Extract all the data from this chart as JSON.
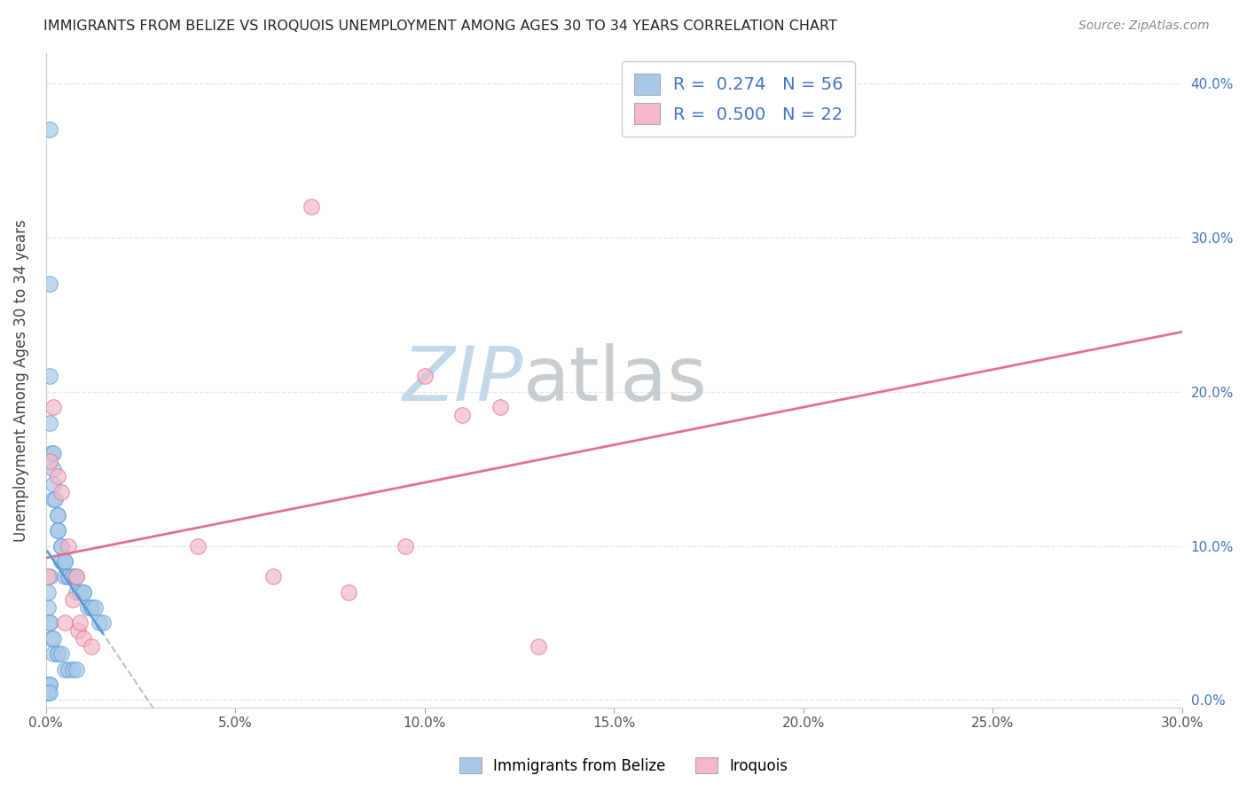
{
  "title": "IMMIGRANTS FROM BELIZE VS IROQUOIS UNEMPLOYMENT AMONG AGES 30 TO 34 YEARS CORRELATION CHART",
  "source": "Source: ZipAtlas.com",
  "ylabel": "Unemployment Among Ages 30 to 34 years",
  "xlabel_blue": "Immigrants from Belize",
  "xlabel_pink": "Iroquois",
  "xlim": [
    0,
    0.3
  ],
  "ylim": [
    -0.005,
    0.42
  ],
  "xticks": [
    0.0,
    0.05,
    0.1,
    0.15,
    0.2,
    0.25,
    0.3
  ],
  "yticks": [
    0.0,
    0.1,
    0.2,
    0.3,
    0.4
  ],
  "blue_R": 0.274,
  "blue_N": 56,
  "pink_R": 0.5,
  "pink_N": 22,
  "blue_color": "#a8c8e8",
  "blue_edge_color": "#5b9bd5",
  "pink_color": "#f4b8c8",
  "pink_edge_color": "#e07090",
  "blue_trend_color": "#5b9bd5",
  "pink_trend_color": "#e07090",
  "watermark_zip_color": "#c8d8e8",
  "watermark_atlas_color": "#c8d0d8",
  "background_color": "#ffffff",
  "grid_color": "#dde8ee",
  "blue_x": [
    0.001,
    0.001,
    0.001,
    0.001,
    0.0015,
    0.002,
    0.002,
    0.002,
    0.002,
    0.0025,
    0.003,
    0.003,
    0.003,
    0.003,
    0.004,
    0.004,
    0.004,
    0.005,
    0.005,
    0.005,
    0.006,
    0.006,
    0.007,
    0.007,
    0.008,
    0.008,
    0.009,
    0.01,
    0.01,
    0.011,
    0.012,
    0.012,
    0.013,
    0.014,
    0.015,
    0.001,
    0.0005,
    0.0005,
    0.001,
    0.001,
    0.0015,
    0.002,
    0.002,
    0.003,
    0.003,
    0.004,
    0.005,
    0.006,
    0.007,
    0.008,
    0.0005,
    0.001,
    0.001,
    0.0005,
    0.0005,
    0.001
  ],
  "blue_y": [
    0.37,
    0.27,
    0.21,
    0.18,
    0.16,
    0.16,
    0.15,
    0.14,
    0.13,
    0.13,
    0.12,
    0.12,
    0.11,
    0.11,
    0.1,
    0.1,
    0.09,
    0.09,
    0.09,
    0.08,
    0.08,
    0.08,
    0.08,
    0.08,
    0.08,
    0.07,
    0.07,
    0.07,
    0.07,
    0.06,
    0.06,
    0.06,
    0.06,
    0.05,
    0.05,
    0.08,
    0.07,
    0.06,
    0.05,
    0.05,
    0.04,
    0.04,
    0.03,
    0.03,
    0.03,
    0.03,
    0.02,
    0.02,
    0.02,
    0.02,
    0.01,
    0.01,
    0.01,
    0.005,
    0.005,
    0.005
  ],
  "pink_x": [
    0.0005,
    0.001,
    0.002,
    0.003,
    0.004,
    0.005,
    0.006,
    0.007,
    0.008,
    0.0085,
    0.009,
    0.01,
    0.012,
    0.04,
    0.06,
    0.07,
    0.08,
    0.095,
    0.1,
    0.11,
    0.12,
    0.13
  ],
  "pink_y": [
    0.08,
    0.155,
    0.19,
    0.145,
    0.135,
    0.05,
    0.1,
    0.065,
    0.08,
    0.045,
    0.05,
    0.04,
    0.035,
    0.1,
    0.08,
    0.32,
    0.07,
    0.1,
    0.21,
    0.185,
    0.19,
    0.035
  ]
}
